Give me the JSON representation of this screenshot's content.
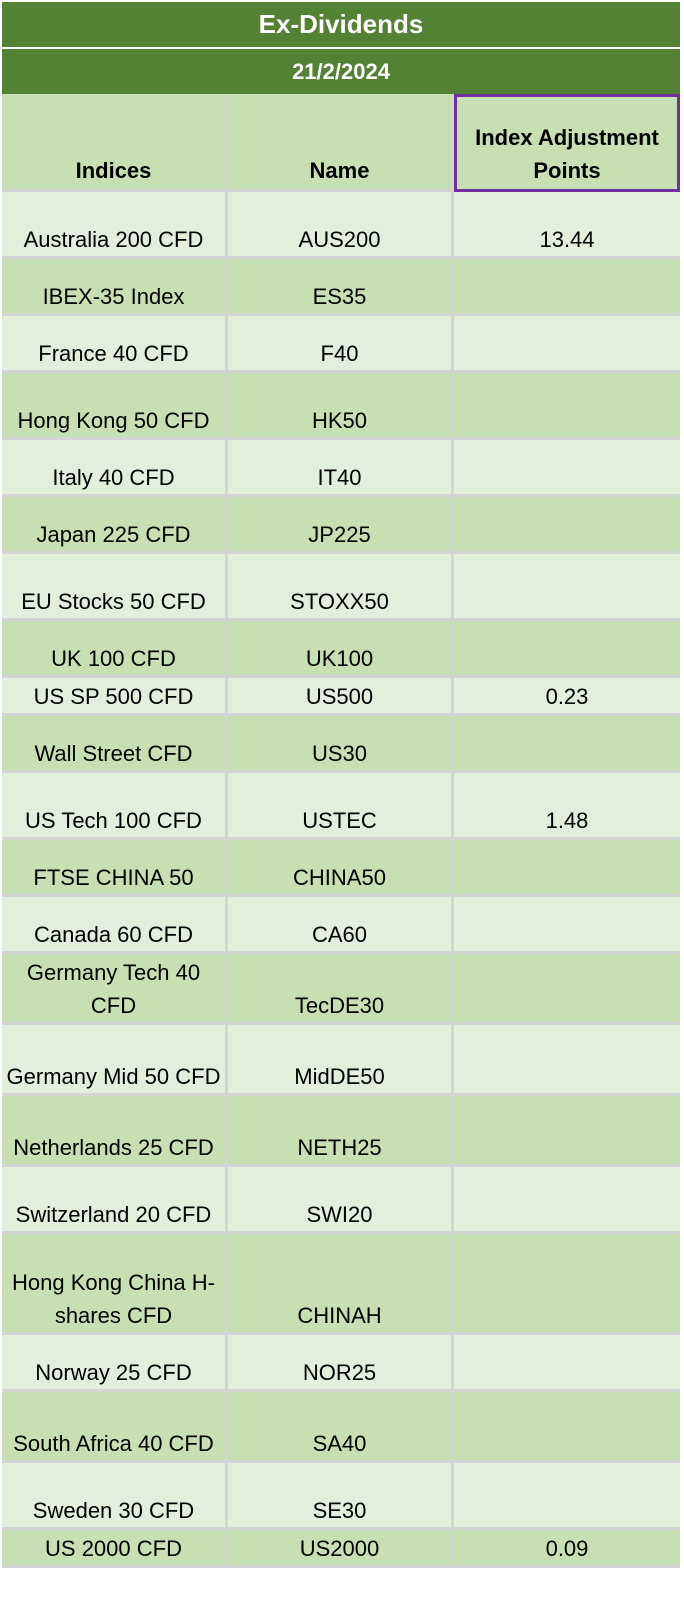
{
  "title": "Ex-Dividends",
  "date": "21/2/2024",
  "columns": [
    "Indices",
    "Name",
    "Index Adjustment Points"
  ],
  "rows": [
    {
      "index": "Australia 200 CFD",
      "name": "AUS200",
      "points": "13.44"
    },
    {
      "index": "IBEX-35 Index",
      "name": "ES35",
      "points": ""
    },
    {
      "index": "France 40 CFD",
      "name": "F40",
      "points": ""
    },
    {
      "index": "Hong Kong 50 CFD",
      "name": "HK50",
      "points": ""
    },
    {
      "index": "Italy 40 CFD",
      "name": "IT40",
      "points": ""
    },
    {
      "index": "Japan 225 CFD",
      "name": "JP225",
      "points": ""
    },
    {
      "index": "EU Stocks 50 CFD",
      "name": "STOXX50",
      "points": ""
    },
    {
      "index": "UK 100 CFD",
      "name": "UK100",
      "points": ""
    },
    {
      "index": "US SP 500 CFD",
      "name": "US500",
      "points": "0.23"
    },
    {
      "index": "Wall Street CFD",
      "name": "US30",
      "points": ""
    },
    {
      "index": "US Tech 100 CFD",
      "name": "USTEC",
      "points": "1.48"
    },
    {
      "index": "FTSE CHINA 50",
      "name": "CHINA50",
      "points": ""
    },
    {
      "index": "Canada 60 CFD",
      "name": "CA60",
      "points": ""
    },
    {
      "index": "Germany Tech 40 CFD",
      "name": "TecDE30",
      "points": ""
    },
    {
      "index": "Germany Mid 50 CFD",
      "name": "MidDE50",
      "points": ""
    },
    {
      "index": "Netherlands 25 CFD",
      "name": "NETH25",
      "points": ""
    },
    {
      "index": "Switzerland 20 CFD",
      "name": "SWI20",
      "points": ""
    },
    {
      "index": "Hong Kong China H-shares CFD",
      "name": "CHINAH",
      "points": ""
    },
    {
      "index": "Norway 25 CFD",
      "name": "NOR25",
      "points": ""
    },
    {
      "index": "South Africa 40 CFD",
      "name": "SA40",
      "points": ""
    },
    {
      "index": "Sweden 30 CFD",
      "name": "SE30",
      "points": ""
    },
    {
      "index": "US 2000 CFD",
      "name": "US2000",
      "points": "0.09"
    }
  ]
}
